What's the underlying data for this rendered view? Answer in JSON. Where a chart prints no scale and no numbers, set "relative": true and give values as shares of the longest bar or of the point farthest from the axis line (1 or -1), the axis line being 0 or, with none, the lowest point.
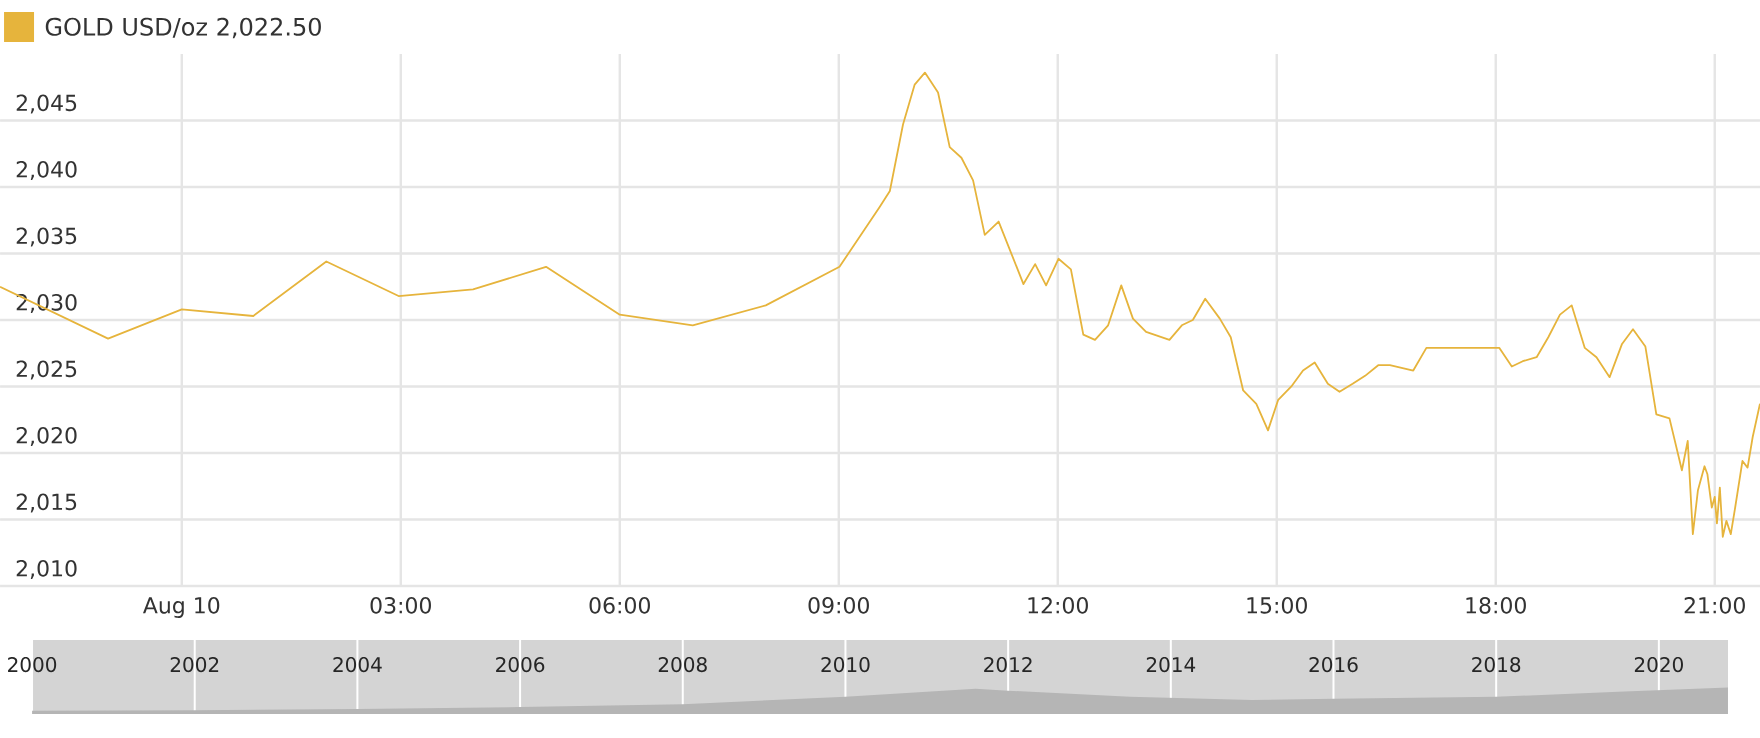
{
  "chart_data": [
    {
      "type": "line",
      "annotations": [
        "2,022.50"
      ],
      "legend": "top left",
      "grid": true,
      "marker": "none",
      "line_style": "solid",
      "xlim": [
        -2.49,
        21.62
      ],
      "ylim": [
        2010,
        2050
      ],
      "xticks": [
        {
          "value": 0,
          "label": "Aug 10"
        },
        {
          "value": 3,
          "label": "03:00"
        },
        {
          "value": 6,
          "label": "06:00"
        },
        {
          "value": 9,
          "label": "09:00"
        },
        {
          "value": 12,
          "label": "12:00"
        },
        {
          "value": 15,
          "label": "15:00"
        },
        {
          "value": 18,
          "label": "18:00"
        },
        {
          "value": 21,
          "label": "21:00"
        }
      ],
      "yticks": [
        {
          "value": 2010,
          "label": "2,010"
        },
        {
          "value": 2015,
          "label": "2,015"
        },
        {
          "value": 2020,
          "label": "2,020"
        },
        {
          "value": 2025,
          "label": "2,025"
        },
        {
          "value": 2030,
          "label": "2,030"
        },
        {
          "value": 2035,
          "label": "2,035"
        },
        {
          "value": 2040,
          "label": "2,040"
        },
        {
          "value": 2045,
          "label": "2,045"
        }
      ],
      "series": [
        {
          "name": "GOLD USD/oz",
          "color": "#e6b43c",
          "x": [
            -2.49,
            -1.01,
            0,
            0.98,
            1.98,
            2.97,
            3.99,
            4.99,
            6.0,
            7.0,
            8.0,
            9.01,
            9.56,
            9.7,
            9.88,
            10.04,
            10.18,
            10.36,
            10.52,
            10.68,
            10.84,
            11.0,
            11.19,
            11.53,
            11.69,
            11.84,
            12.01,
            12.18,
            12.35,
            12.51,
            12.69,
            12.87,
            13.03,
            13.21,
            13.53,
            13.7,
            13.85,
            14.02,
            14.22,
            14.37,
            14.54,
            14.72,
            14.88,
            15.02,
            15.2,
            15.36,
            15.52,
            15.7,
            15.86,
            16.04,
            16.21,
            16.39,
            16.55,
            16.87,
            17.05,
            18.05,
            18.22,
            18.37,
            18.56,
            18.72,
            18.88,
            19.04,
            19.22,
            19.38,
            19.56,
            19.73,
            19.88,
            20.05,
            20.2,
            20.38,
            20.55,
            20.63,
            20.7,
            20.77,
            20.86,
            20.9,
            20.96,
            21.0,
            21.03,
            21.07,
            21.11,
            21.16,
            21.22,
            21.28,
            21.38,
            21.45,
            21.52,
            21.62
          ],
          "values": [
            2032.5,
            2028.6,
            2030.8,
            2030.3,
            2034.4,
            2031.8,
            2032.3,
            2034.0,
            2030.4,
            2029.6,
            2031.1,
            2034.0,
            2038.5,
            2039.7,
            2044.7,
            2047.7,
            2048.6,
            2047.1,
            2043.0,
            2042.2,
            2040.5,
            2036.4,
            2037.4,
            2032.7,
            2034.2,
            2032.6,
            2034.6,
            2033.8,
            2028.9,
            2028.5,
            2029.6,
            2032.6,
            2030.1,
            2029.1,
            2028.5,
            2029.6,
            2030.0,
            2031.6,
            2030.1,
            2028.7,
            2024.7,
            2023.7,
            2021.7,
            2024.0,
            2025.0,
            2026.2,
            2026.8,
            2025.2,
            2024.6,
            2025.2,
            2025.8,
            2026.6,
            2026.6,
            2026.2,
            2027.9,
            2027.9,
            2026.5,
            2026.9,
            2027.2,
            2028.7,
            2030.4,
            2031.1,
            2027.9,
            2027.2,
            2025.7,
            2028.2,
            2029.3,
            2028.0,
            2022.9,
            2022.6,
            2018.7,
            2020.9,
            2013.9,
            2017.2,
            2019.0,
            2018.4,
            2015.9,
            2016.7,
            2014.7,
            2017.4,
            2013.7,
            2014.9,
            2013.9,
            2015.9,
            2019.4,
            2018.9,
            2021.2,
            2023.7
          ]
        }
      ]
    },
    {
      "type": "area",
      "relative": true,
      "grid": "x",
      "xlim": [
        2000,
        2020.85
      ],
      "xticks": [
        2000,
        2002,
        2004,
        2006,
        2008,
        2010,
        2012,
        2014,
        2016,
        2018,
        2020
      ],
      "series": [
        {
          "color": "#b5b5b5",
          "x": [
            2000,
            2002,
            2004,
            2006,
            2008,
            2010,
            2011.6,
            2012,
            2013.5,
            2015,
            2016,
            2018,
            2019.5,
            2020.85
          ],
          "values": [
            0.12,
            0.14,
            0.19,
            0.26,
            0.37,
            0.65,
            0.95,
            0.88,
            0.65,
            0.53,
            0.58,
            0.65,
            0.84,
            1.0
          ]
        }
      ]
    }
  ]
}
